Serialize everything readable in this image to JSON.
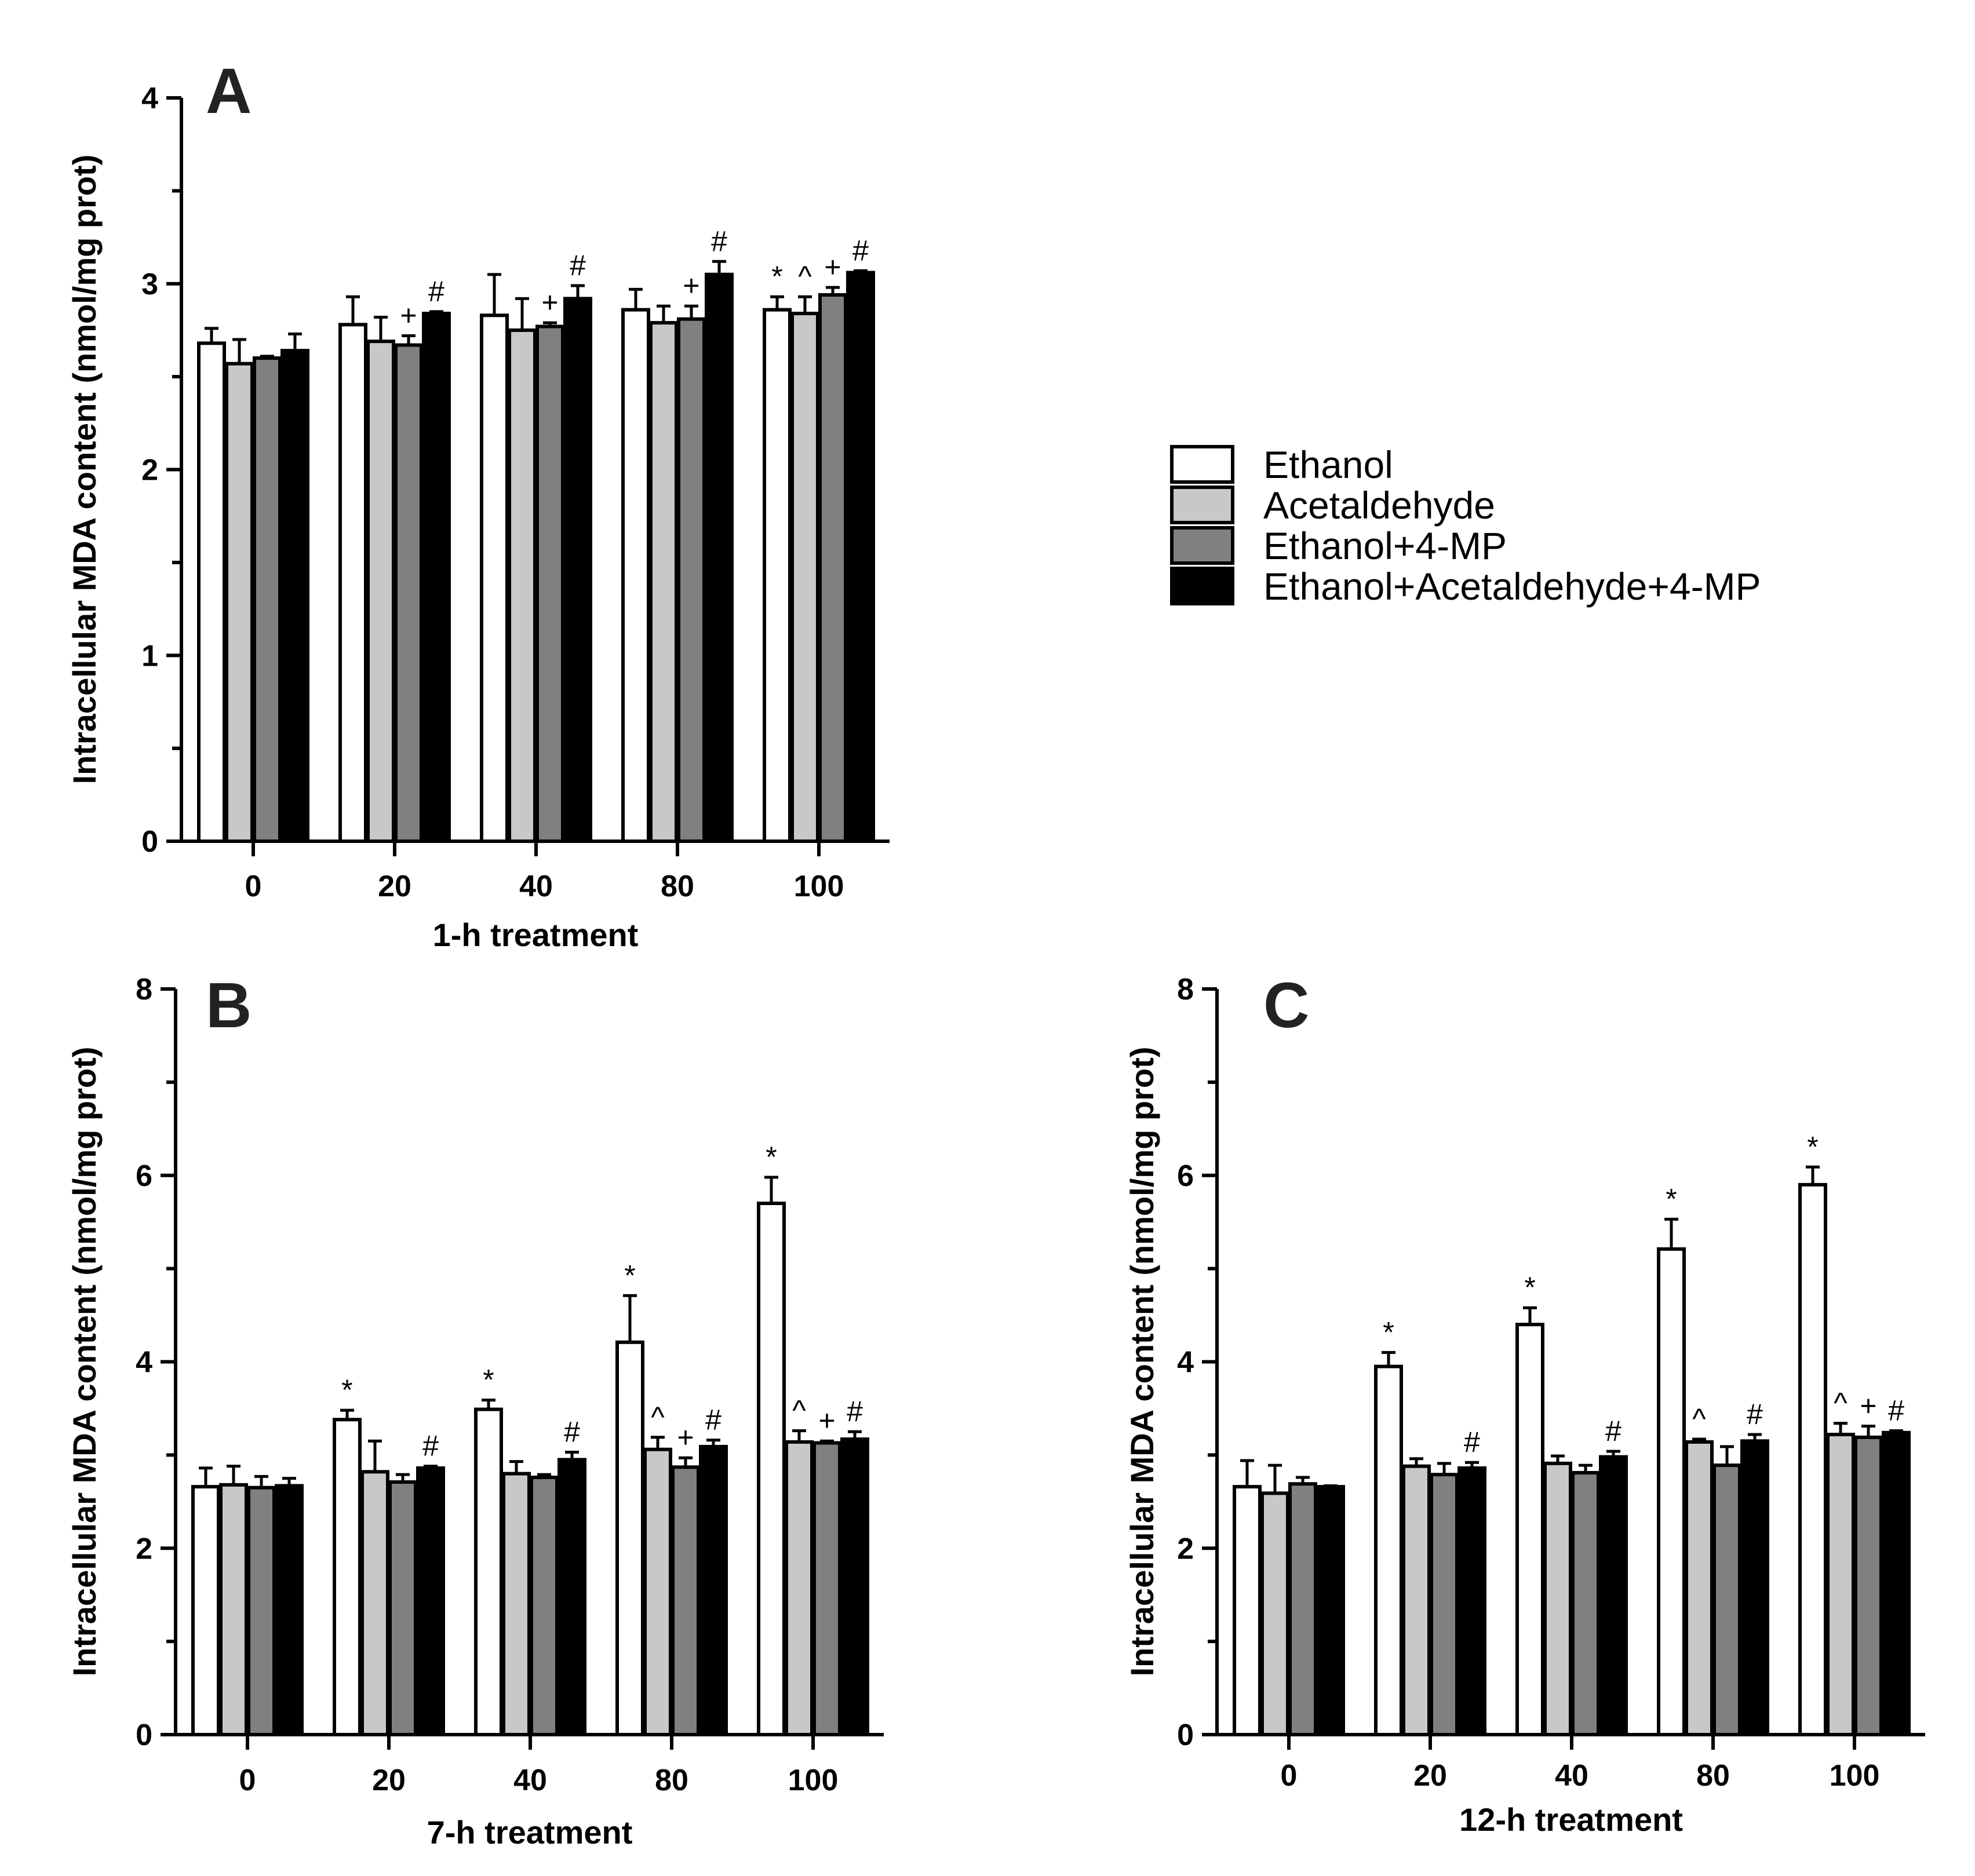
{
  "legend": {
    "items": [
      {
        "label": "Ethanol",
        "color": "#ffffff"
      },
      {
        "label": "Acetaldehyde",
        "color": "#c8c8c8"
      },
      {
        "label": "Ethanol+4-MP",
        "color": "#808080"
      },
      {
        "label": "Ethanol+Acetaldehyde+4-MP",
        "color": "#000000"
      }
    ]
  },
  "chart_data": [
    {
      "type": "bar",
      "panel": "A",
      "xlabel": "1-h treatment",
      "ylabel": "Intracellular  MDA content (nmol/mg prot)",
      "ylim": [
        0,
        4
      ],
      "yticks": [
        "0",
        "1",
        "2",
        "3",
        "4"
      ],
      "categories": [
        "0",
        "20",
        "40",
        "80",
        "100"
      ],
      "series": [
        {
          "name": "Ethanol",
          "values": [
            2.68,
            2.78,
            2.83,
            2.86,
            2.86
          ],
          "errors": [
            0.08,
            0.15,
            0.22,
            0.11,
            0.07
          ],
          "marks": [
            "",
            "",
            "",
            "",
            "*"
          ]
        },
        {
          "name": "Acetaldehyde",
          "values": [
            2.57,
            2.69,
            2.75,
            2.79,
            2.84
          ],
          "errors": [
            0.13,
            0.13,
            0.17,
            0.09,
            0.09
          ],
          "marks": [
            "",
            "",
            "",
            "",
            "^"
          ]
        },
        {
          "name": "Ethanol+4-MP",
          "values": [
            2.6,
            2.67,
            2.77,
            2.81,
            2.94
          ],
          "errors": [
            0.01,
            0.05,
            0.02,
            0.07,
            0.04
          ],
          "marks": [
            "",
            "+",
            "+",
            "+",
            "+"
          ]
        },
        {
          "name": "Ethanol+Acetaldehyde+4-MP",
          "values": [
            2.64,
            2.84,
            2.92,
            3.05,
            3.06
          ],
          "errors": [
            0.09,
            0.01,
            0.07,
            0.07,
            0.01
          ],
          "marks": [
            "",
            "#",
            "#",
            "#",
            "#"
          ]
        }
      ]
    },
    {
      "type": "bar",
      "panel": "B",
      "xlabel": "7-h treatment",
      "ylabel": "Intracellular  MDA content (nmol/mg prot)",
      "ylim": [
        0,
        8
      ],
      "yticks": [
        "0",
        "2",
        "4",
        "6",
        "8"
      ],
      "categories": [
        "0",
        "20",
        "40",
        "80",
        "100"
      ],
      "series": [
        {
          "name": "Ethanol",
          "values": [
            2.66,
            3.38,
            3.49,
            4.21,
            5.7
          ],
          "errors": [
            0.2,
            0.1,
            0.1,
            0.5,
            0.28
          ],
          "marks": [
            "",
            "*",
            "*",
            "*",
            "*"
          ]
        },
        {
          "name": "Acetaldehyde",
          "values": [
            2.68,
            2.82,
            2.8,
            3.06,
            3.14
          ],
          "errors": [
            0.2,
            0.33,
            0.13,
            0.13,
            0.12
          ],
          "marks": [
            "",
            "",
            "",
            "^",
            "^"
          ]
        },
        {
          "name": "Ethanol+4-MP",
          "values": [
            2.65,
            2.71,
            2.76,
            2.87,
            3.13
          ],
          "errors": [
            0.12,
            0.08,
            0.03,
            0.1,
            0.02
          ],
          "marks": [
            "",
            "",
            "",
            "+",
            "+"
          ]
        },
        {
          "name": "Ethanol+Acetaldehyde+4-MP",
          "values": [
            2.67,
            2.86,
            2.95,
            3.09,
            3.17
          ],
          "errors": [
            0.08,
            0.02,
            0.08,
            0.07,
            0.08
          ],
          "marks": [
            "",
            "#",
            "#",
            "#",
            "#"
          ]
        }
      ]
    },
    {
      "type": "bar",
      "panel": "C",
      "xlabel": "12-h treatment",
      "ylabel": "Intracellular  MDA content (nmol/mg prot)",
      "ylim": [
        0,
        8
      ],
      "yticks": [
        "0",
        "2",
        "4",
        "6",
        "8"
      ],
      "categories": [
        "0",
        "20",
        "40",
        "80",
        "100"
      ],
      "series": [
        {
          "name": "Ethanol",
          "values": [
            2.66,
            3.95,
            4.4,
            5.21,
            5.9
          ],
          "errors": [
            0.28,
            0.15,
            0.18,
            0.32,
            0.19
          ],
          "marks": [
            "",
            "*",
            "*",
            "*",
            "*"
          ]
        },
        {
          "name": "Acetaldehyde",
          "values": [
            2.59,
            2.88,
            2.91,
            3.14,
            3.22
          ],
          "errors": [
            0.3,
            0.08,
            0.08,
            0.03,
            0.12
          ],
          "marks": [
            "",
            "",
            "",
            "^",
            "^"
          ]
        },
        {
          "name": "Ethanol+4-MP",
          "values": [
            2.69,
            2.79,
            2.81,
            2.89,
            3.19
          ],
          "errors": [
            0.07,
            0.12,
            0.08,
            0.2,
            0.12
          ],
          "marks": [
            "",
            "",
            "",
            "",
            "+"
          ]
        },
        {
          "name": "Ethanol+Acetaldehyde+4-MP",
          "values": [
            2.66,
            2.86,
            2.98,
            3.15,
            3.24
          ],
          "errors": [
            0.01,
            0.06,
            0.06,
            0.07,
            0.02
          ],
          "marks": [
            "",
            "#",
            "#",
            "#",
            "#"
          ]
        }
      ]
    }
  ]
}
